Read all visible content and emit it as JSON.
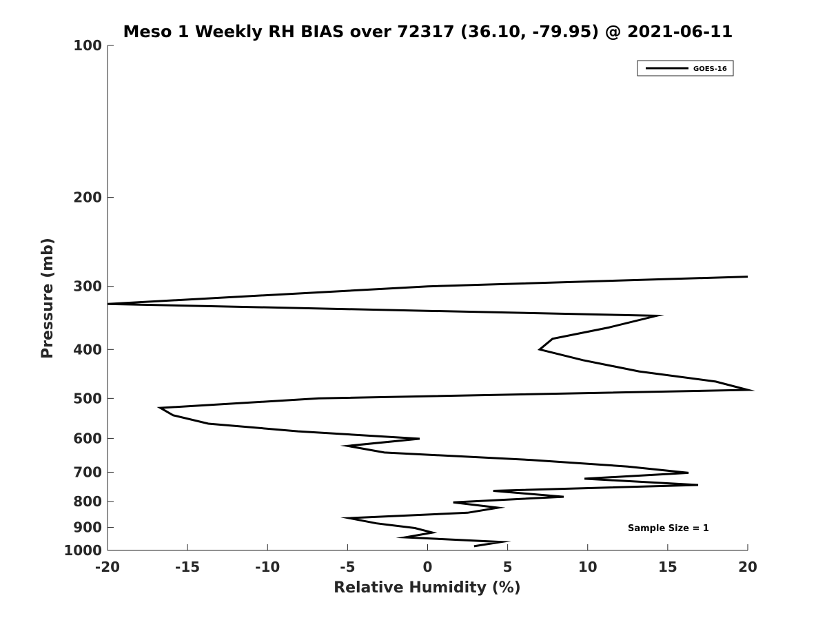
{
  "chart_data": {
    "type": "line",
    "title": "Meso 1 Weekly RH BIAS over 72317 (36.10, -79.95) @ 2021-06-11",
    "xlabel": "Relative Humidity (%)",
    "ylabel": "Pressure (mb)",
    "xlim": [
      -20,
      20
    ],
    "ylim": [
      100,
      1000
    ],
    "y_scale": "log",
    "y_reversed": true,
    "x_ticks": [
      "-20",
      "-15",
      "-10",
      "-5",
      "0",
      "5",
      "10",
      "15",
      "20"
    ],
    "y_ticks": [
      "100",
      "200",
      "300",
      "400",
      "500",
      "600",
      "700",
      "800",
      "900",
      "1000"
    ],
    "grid": false,
    "legend_position": "top-right",
    "annotation": "Sample Size = 1",
    "series": [
      {
        "name": "GOES-16",
        "color": "#000000",
        "points": [
          {
            "x": 20.0,
            "y": 287
          },
          {
            "x": 0.0,
            "y": 300
          },
          {
            "x": -20.0,
            "y": 325
          },
          {
            "x": 14.3,
            "y": 343
          },
          {
            "x": 11.3,
            "y": 362
          },
          {
            "x": 7.8,
            "y": 381
          },
          {
            "x": 7.0,
            "y": 400
          },
          {
            "x": 9.7,
            "y": 420
          },
          {
            "x": 13.2,
            "y": 442
          },
          {
            "x": 18.0,
            "y": 463
          },
          {
            "x": 20.0,
            "y": 481
          },
          {
            "x": -6.8,
            "y": 500
          },
          {
            "x": -16.7,
            "y": 522
          },
          {
            "x": -15.9,
            "y": 540
          },
          {
            "x": -13.7,
            "y": 561
          },
          {
            "x": -8.1,
            "y": 581
          },
          {
            "x": -0.5,
            "y": 601
          },
          {
            "x": -5.0,
            "y": 621
          },
          {
            "x": -2.7,
            "y": 640
          },
          {
            "x": 6.5,
            "y": 662
          },
          {
            "x": 12.5,
            "y": 682
          },
          {
            "x": 16.3,
            "y": 702
          },
          {
            "x": 9.8,
            "y": 721
          },
          {
            "x": 16.9,
            "y": 742
          },
          {
            "x": 4.1,
            "y": 762
          },
          {
            "x": 8.5,
            "y": 783
          },
          {
            "x": 1.6,
            "y": 803
          },
          {
            "x": 4.4,
            "y": 823
          },
          {
            "x": 2.5,
            "y": 842
          },
          {
            "x": -4.9,
            "y": 863
          },
          {
            "x": -3.2,
            "y": 884
          },
          {
            "x": -0.8,
            "y": 903
          },
          {
            "x": 0.3,
            "y": 922
          },
          {
            "x": -1.4,
            "y": 942
          },
          {
            "x": 4.6,
            "y": 962
          },
          {
            "x": 2.9,
            "y": 981
          }
        ]
      }
    ]
  }
}
